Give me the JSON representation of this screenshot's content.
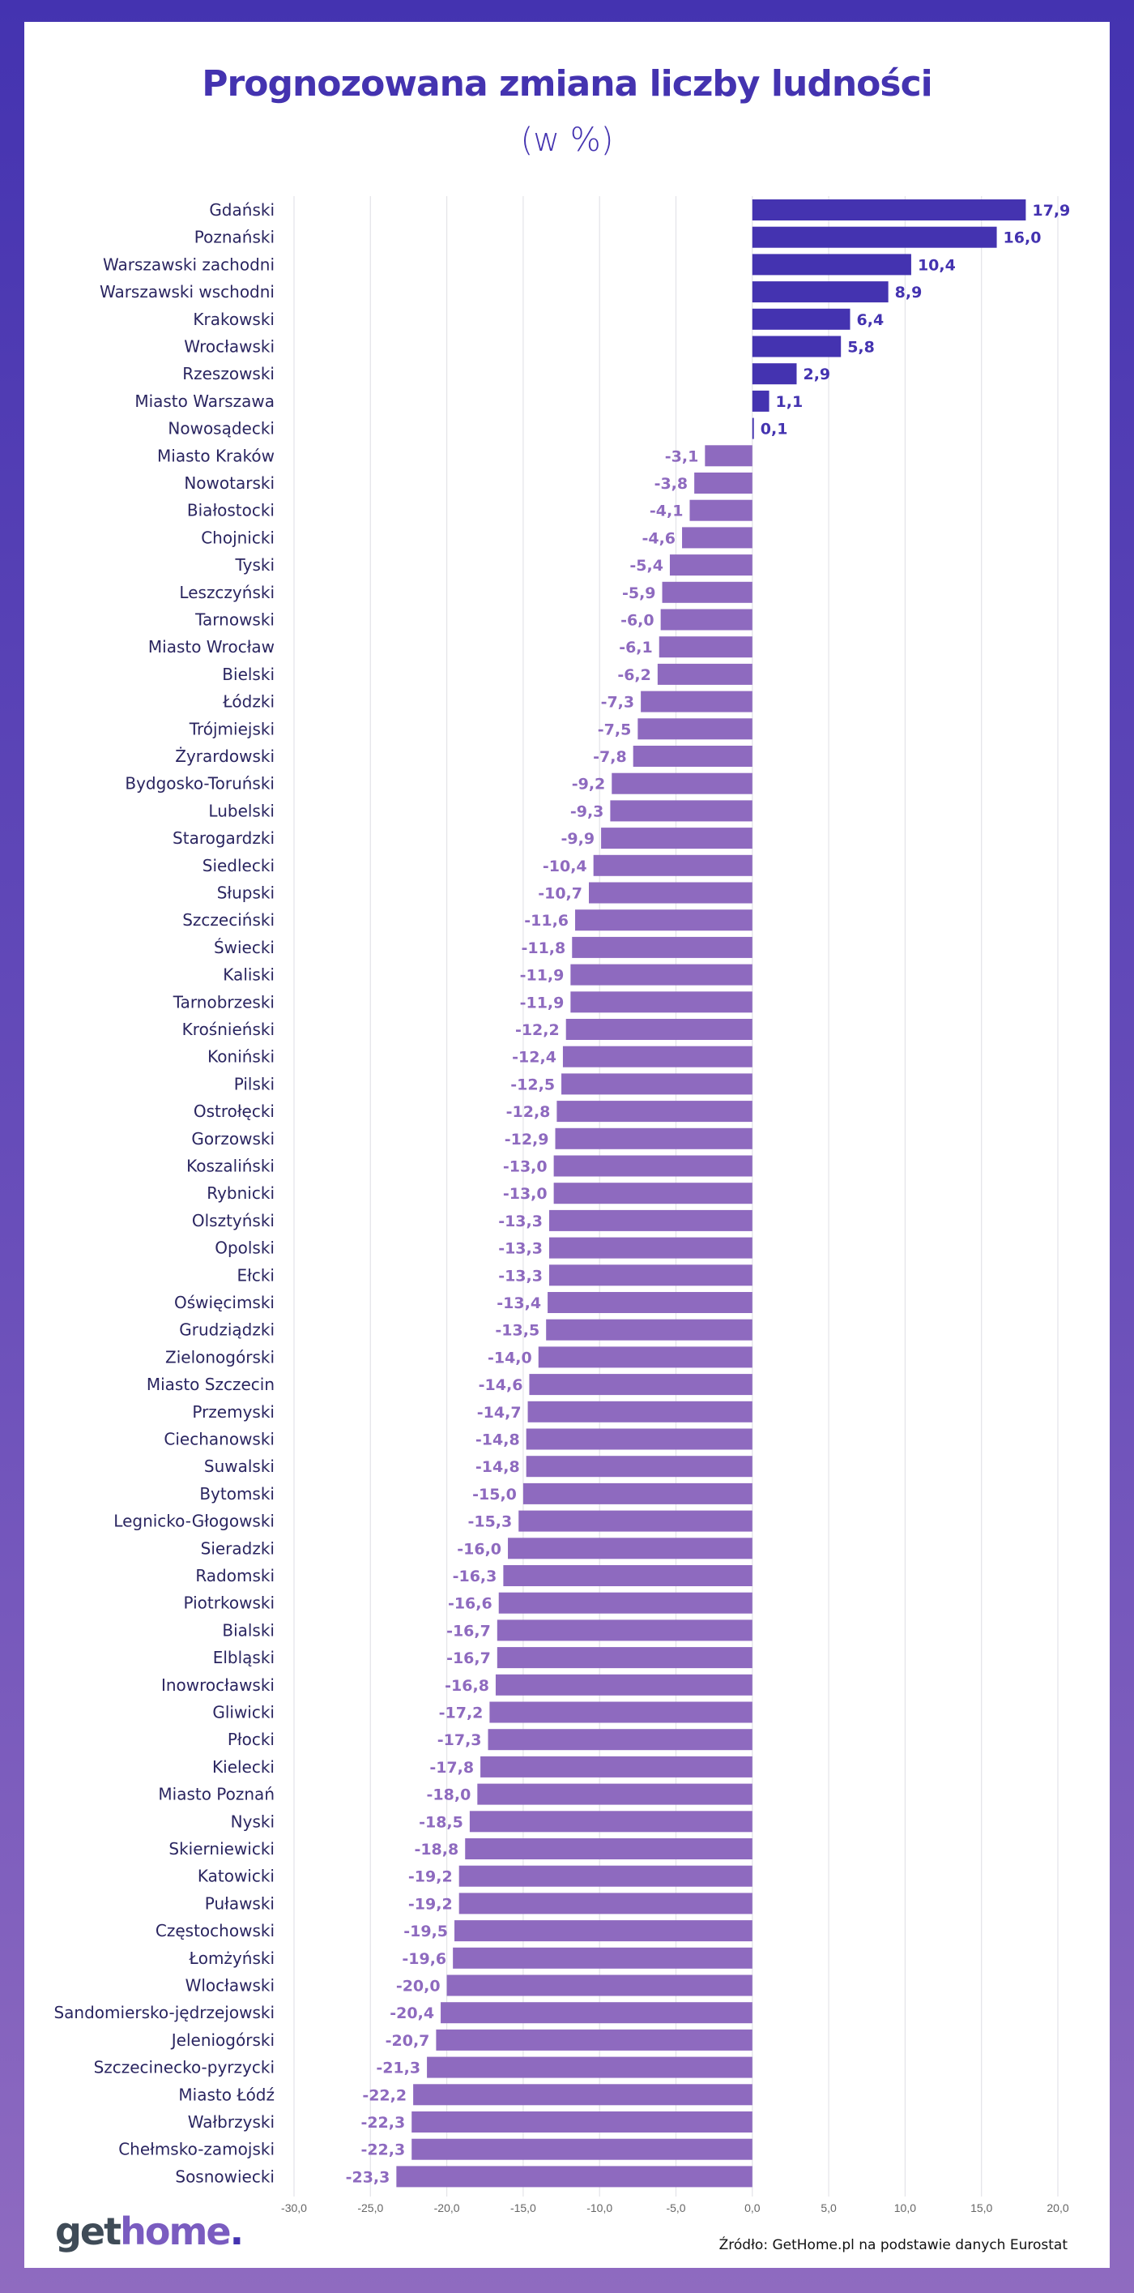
{
  "header": {
    "title": "Prognozowana zmiana liczby ludności",
    "subtitle": "(w %)"
  },
  "footer": {
    "logo_get": "get",
    "logo_home": "home",
    "logo_dot": ".",
    "source": "Źródło: GetHome.pl na podstawie danych Eurostat"
  },
  "colors": {
    "positive": "#4433b0",
    "negative": "#8e6abf",
    "label_text": "#2a2560",
    "grid": "#e3e3e8"
  },
  "chart_data": {
    "type": "bar",
    "orientation": "horizontal",
    "title": "Prognozowana zmiana liczby ludności",
    "subtitle": "(w %)",
    "xlim": [
      -30,
      20
    ],
    "xticks": [
      -30,
      -25,
      -20,
      -15,
      -10,
      -5,
      0,
      5,
      10,
      15,
      20
    ],
    "xtick_labels": [
      "-30,0",
      "-25,0",
      "-20,0",
      "-15,0",
      "-10,0",
      "-5,0",
      "0,0",
      "5,0",
      "10,0",
      "15,0",
      "20,0"
    ],
    "grid": "vertical",
    "categories": [
      "Gdański",
      "Poznański",
      "Warszawski zachodni",
      "Warszawski wschodni",
      "Krakowski",
      "Wrocławski",
      "Rzeszowski",
      "Miasto Warszawa",
      "Nowosądecki",
      "Miasto Kraków",
      "Nowotarski",
      "Białostocki",
      "Chojnicki",
      "Tyski",
      "Leszczyński",
      "Tarnowski",
      "Miasto Wrocław",
      "Bielski",
      "Łódzki",
      "Trójmiejski",
      "Żyrardowski",
      "Bydgosko-Toruński",
      "Lubelski",
      "Starogardzki",
      "Siedlecki",
      "Słupski",
      "Szczeciński",
      "Świecki",
      "Kaliski",
      "Tarnobrzeski",
      "Krośnieński",
      "Koniński",
      "Pilski",
      "Ostrołęcki",
      "Gorzowski",
      "Koszaliński",
      "Rybnicki",
      "Olsztyński",
      "Opolski",
      "Ełcki",
      "Oświęcimski",
      "Grudziądzki",
      "Zielonogórski",
      "Miasto Szczecin",
      "Przemyski",
      "Ciechanowski",
      "Suwalski",
      "Bytomski",
      "Legnicko-Głogowski",
      "Sieradzki",
      "Radomski",
      "Piotrkowski",
      "Bialski",
      "Elbląski",
      "Inowrocławski",
      "Gliwicki",
      "Płocki",
      "Kielecki",
      "Miasto Poznań",
      "Nyski",
      "Skierniewicki",
      "Katowicki",
      "Puławski",
      "Częstochowski",
      "Łomżyński",
      "Wlocławski",
      "Sandomiersko-jędrzejowski",
      "Jeleniogórski",
      "Szczecinecko-pyrzycki",
      "Miasto Łódź",
      "Wałbrzyski",
      "Chełmsko-zamojski",
      "Sosnowiecki"
    ],
    "values": [
      17.9,
      16.0,
      10.4,
      8.9,
      6.4,
      5.8,
      2.9,
      1.1,
      0.1,
      -3.1,
      -3.8,
      -4.1,
      -4.6,
      -5.4,
      -5.9,
      -6.0,
      -6.1,
      -6.2,
      -7.3,
      -7.5,
      -7.8,
      -9.2,
      -9.3,
      -9.9,
      -10.4,
      -10.7,
      -11.6,
      -11.8,
      -11.9,
      -11.9,
      -12.2,
      -12.4,
      -12.5,
      -12.8,
      -12.9,
      -13.0,
      -13.0,
      -13.3,
      -13.3,
      -13.3,
      -13.4,
      -13.5,
      -14.0,
      -14.6,
      -14.7,
      -14.8,
      -14.8,
      -15.0,
      -15.3,
      -16.0,
      -16.3,
      -16.6,
      -16.7,
      -16.7,
      -16.8,
      -17.2,
      -17.3,
      -17.8,
      -18.0,
      -18.5,
      -18.8,
      -19.2,
      -19.2,
      -19.5,
      -19.6,
      -20.0,
      -20.4,
      -20.7,
      -21.3,
      -22.2,
      -22.3,
      -22.3,
      -23.3
    ],
    "data_labels": [
      "17,9",
      "16,0",
      "10,4",
      "8,9",
      "6,4",
      "5,8",
      "2,9",
      "1,1",
      "0,1",
      "-3,1",
      "-3,8",
      "-4,1",
      "-4,6",
      "-5,4",
      "-5,9",
      "-6,0",
      "-6,1",
      "-6,2",
      "-7,3",
      "-7,5",
      "-7,8",
      "-9,2",
      "-9,3",
      "-9,9",
      "-10,4",
      "-10,7",
      "-11,6",
      "-11,8",
      "-11,9",
      "-11,9",
      "-12,2",
      "-12,4",
      "-12,5",
      "-12,8",
      "-12,9",
      "-13,0",
      "-13,0",
      "-13,3",
      "-13,3",
      "-13,3",
      "-13,4",
      "-13,5",
      "-14,0",
      "-14,6",
      "-14,7",
      "-14,8",
      "-14,8",
      "-15,0",
      "-15,3",
      "-16,0",
      "-16,3",
      "-16,6",
      "-16,7",
      "-16,7",
      "-16,8",
      "-17,2",
      "-17,3",
      "-17,8",
      "-18,0",
      "-18,5",
      "-18,8",
      "-19,2",
      "-19,2",
      "-19,5",
      "-19,6",
      "-20,0",
      "-20,4",
      "-20,7",
      "-21,3",
      "-22,2",
      "-22,3",
      "-22,3",
      "-23,3"
    ]
  }
}
